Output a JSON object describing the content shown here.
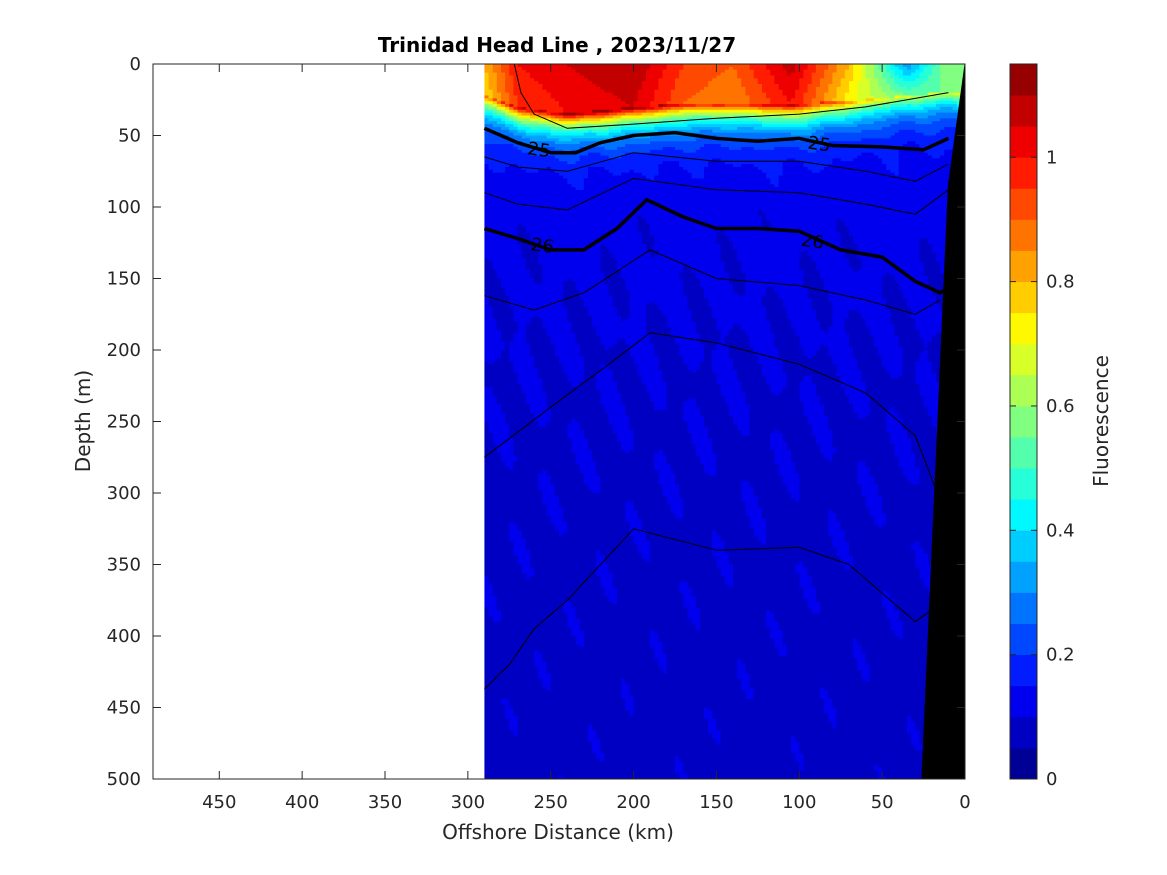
{
  "chart_data": {
    "type": "heatmap",
    "title": "Trinidad Head Line , 2023/11/27",
    "xlabel": "Offshore Distance (km)",
    "ylabel": "Depth (m)",
    "colorbar_label": "Fluorescence",
    "x_axis": {
      "range": [
        490,
        0
      ],
      "reversed": true,
      "ticks": [
        450,
        400,
        350,
        300,
        250,
        200,
        150,
        100,
        50,
        0
      ]
    },
    "y_axis": {
      "range": [
        0,
        500
      ],
      "reversed": true,
      "ticks": [
        0,
        50,
        100,
        150,
        200,
        250,
        300,
        350,
        400,
        450,
        500
      ]
    },
    "colorbar": {
      "range": [
        0,
        1.15
      ],
      "ticks": [
        0,
        0.2,
        0.4,
        0.6,
        0.8,
        1
      ],
      "tick_labels": [
        "0",
        "0.2",
        "0.4",
        "0.6",
        "0.8",
        "1"
      ],
      "levels": 23,
      "colormap": "jet"
    },
    "data_extent_km": [
      290,
      0
    ],
    "fluorescence_profiles": [
      {
        "x": 290,
        "surface": 0.8,
        "mixed_layer": 0.75,
        "mld": 22
      },
      {
        "x": 270,
        "surface": 1.0,
        "mixed_layer": 0.95,
        "mld": 30
      },
      {
        "x": 240,
        "surface": 1.05,
        "mixed_layer": 1.0,
        "mld": 35
      },
      {
        "x": 200,
        "surface": 1.1,
        "mixed_layer": 1.05,
        "mld": 30
      },
      {
        "x": 170,
        "surface": 0.95,
        "mixed_layer": 0.9,
        "mld": 28
      },
      {
        "x": 140,
        "surface": 0.9,
        "mixed_layer": 0.85,
        "mld": 28
      },
      {
        "x": 105,
        "surface": 1.08,
        "mixed_layer": 1.0,
        "mld": 28
      },
      {
        "x": 70,
        "surface": 0.8,
        "mixed_layer": 0.72,
        "mld": 26
      },
      {
        "x": 35,
        "surface": 0.3,
        "mixed_layer": 0.55,
        "mld": 22
      },
      {
        "x": 10,
        "surface": 0.6,
        "mixed_layer": 0.55,
        "mld": 20
      }
    ],
    "isopycnals": [
      {
        "level": "",
        "bold": false,
        "points": [
          [
            272,
            0
          ],
          [
            268,
            20
          ],
          [
            260,
            35
          ],
          [
            240,
            45
          ],
          [
            200,
            42
          ],
          [
            150,
            38
          ],
          [
            100,
            35
          ],
          [
            60,
            30
          ],
          [
            10,
            20
          ]
        ]
      },
      {
        "level": "25",
        "bold": true,
        "points": [
          [
            290,
            45
          ],
          [
            270,
            55
          ],
          [
            250,
            62
          ],
          [
            235,
            62
          ],
          [
            220,
            55
          ],
          [
            200,
            50
          ],
          [
            175,
            48
          ],
          [
            150,
            52
          ],
          [
            125,
            54
          ],
          [
            100,
            52
          ],
          [
            80,
            57
          ],
          [
            50,
            58
          ],
          [
            25,
            60
          ],
          [
            10,
            52
          ]
        ]
      },
      {
        "level": "",
        "bold": false,
        "points": [
          [
            290,
            65
          ],
          [
            270,
            72
          ],
          [
            240,
            75
          ],
          [
            200,
            62
          ],
          [
            150,
            68
          ],
          [
            100,
            68
          ],
          [
            60,
            75
          ],
          [
            30,
            82
          ],
          [
            10,
            70
          ]
        ]
      },
      {
        "level": "",
        "bold": false,
        "points": [
          [
            290,
            90
          ],
          [
            270,
            98
          ],
          [
            240,
            102
          ],
          [
            200,
            80
          ],
          [
            150,
            88
          ],
          [
            100,
            90
          ],
          [
            60,
            98
          ],
          [
            30,
            105
          ],
          [
            10,
            88
          ]
        ]
      },
      {
        "level": "26",
        "bold": true,
        "points": [
          [
            290,
            115
          ],
          [
            270,
            122
          ],
          [
            250,
            130
          ],
          [
            230,
            130
          ],
          [
            210,
            115
          ],
          [
            192,
            95
          ],
          [
            170,
            107
          ],
          [
            150,
            115
          ],
          [
            125,
            115
          ],
          [
            100,
            117
          ],
          [
            75,
            130
          ],
          [
            50,
            135
          ],
          [
            30,
            152
          ],
          [
            15,
            160
          ],
          [
            8,
            155
          ]
        ]
      },
      {
        "level": "",
        "bold": false,
        "points": [
          [
            290,
            162
          ],
          [
            260,
            172
          ],
          [
            230,
            160
          ],
          [
            190,
            130
          ],
          [
            150,
            150
          ],
          [
            100,
            155
          ],
          [
            60,
            165
          ],
          [
            30,
            175
          ],
          [
            15,
            165
          ]
        ]
      },
      {
        "level": "",
        "bold": false,
        "points": [
          [
            290,
            275
          ],
          [
            250,
            240
          ],
          [
            215,
            210
          ],
          [
            190,
            188
          ],
          [
            150,
            195
          ],
          [
            100,
            210
          ],
          [
            60,
            230
          ],
          [
            30,
            260
          ],
          [
            10,
            320
          ]
        ]
      },
      {
        "level": "",
        "bold": false,
        "points": [
          [
            290,
            437
          ],
          [
            275,
            420
          ],
          [
            260,
            395
          ],
          [
            240,
            375
          ],
          [
            200,
            325
          ],
          [
            150,
            340
          ],
          [
            100,
            338
          ],
          [
            70,
            350
          ],
          [
            50,
            370
          ],
          [
            30,
            390
          ],
          [
            18,
            380
          ]
        ]
      }
    ],
    "bathymetry": {
      "points": [
        [
          0,
          0
        ],
        [
          0,
          500
        ],
        [
          26,
          500
        ],
        [
          10,
          85
        ],
        [
          0,
          0
        ]
      ]
    }
  }
}
